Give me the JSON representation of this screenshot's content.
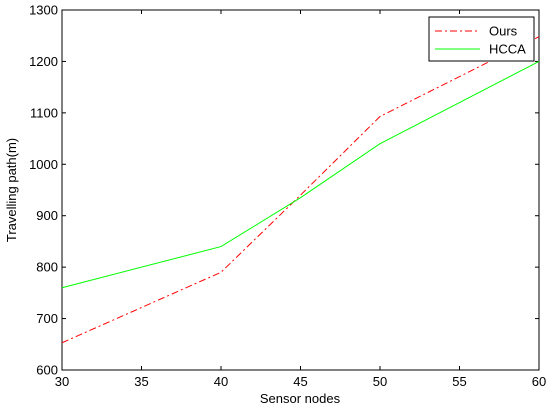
{
  "chart_data": {
    "type": "line",
    "title": "",
    "xlabel": "Sensor nodes",
    "ylabel": "Travelling path(m)",
    "xlim": [
      30,
      60
    ],
    "ylim": [
      600,
      1300
    ],
    "xticks": [
      30,
      35,
      40,
      45,
      50,
      55,
      60
    ],
    "yticks": [
      600,
      700,
      800,
      900,
      1000,
      1100,
      1200,
      1300
    ],
    "grid": false,
    "legend_position": "top-right",
    "x": [
      30,
      40,
      45,
      50,
      60
    ],
    "series": [
      {
        "name": "Ours",
        "values": [
          653,
          790,
          940,
          1093,
          1248
        ],
        "color": "#ff0000",
        "style": "dash-dot"
      },
      {
        "name": "HCCA",
        "values": [
          760,
          840,
          935,
          1040,
          1200
        ],
        "color": "#00ff00",
        "style": "solid"
      }
    ]
  }
}
